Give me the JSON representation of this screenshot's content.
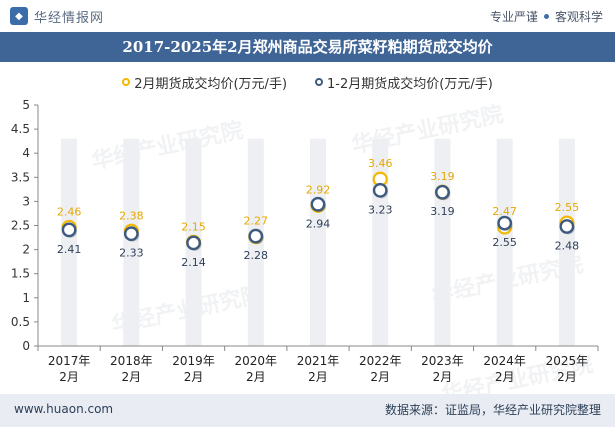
{
  "header": {
    "brand": "华经情报网",
    "tagline_1": "专业严谨",
    "tagline_2": "客观科学"
  },
  "colors": {
    "series1": "#f5b800",
    "series2": "#3e5a80",
    "title_bar": "#3f6597"
  },
  "watermark": "华经产业研究院",
  "footer": {
    "website": "www.huaon.com",
    "source": "数据来源：证监局，华经产业研究院整理"
  },
  "chart_data": {
    "type": "scatter",
    "title": "2017-2025年2月郑州商品交易所菜籽粕期货成交均价",
    "categories": [
      "2017年2月",
      "2018年2月",
      "2019年2月",
      "2020年2月",
      "2021年2月",
      "2022年2月",
      "2023年2月",
      "2024年2月",
      "2025年2月"
    ],
    "category_lines": [
      [
        "2017年",
        "2月"
      ],
      [
        "2018年",
        "2月"
      ],
      [
        "2019年",
        "2月"
      ],
      [
        "2020年",
        "2月"
      ],
      [
        "2021年",
        "2月"
      ],
      [
        "2022年",
        "2月"
      ],
      [
        "2023年",
        "2月"
      ],
      [
        "2024年",
        "2月"
      ],
      [
        "2025年",
        "2月"
      ]
    ],
    "series": [
      {
        "name": "2月期货成交均价(万元/手)",
        "values": [
          2.46,
          2.38,
          2.15,
          2.27,
          2.92,
          3.46,
          3.19,
          2.47,
          2.55
        ]
      },
      {
        "name": "1-2月期货成交均价(万元/手)",
        "values": [
          2.41,
          2.33,
          2.14,
          2.28,
          2.94,
          3.23,
          3.19,
          2.55,
          2.48
        ]
      }
    ],
    "ylim": [
      0,
      5
    ],
    "yticks": [
      "0",
      "0.5",
      "1",
      "1.5",
      "2",
      "2.5",
      "3",
      "3.5",
      "4",
      "4.5",
      "5"
    ],
    "legend_position": "top",
    "grid": false
  }
}
